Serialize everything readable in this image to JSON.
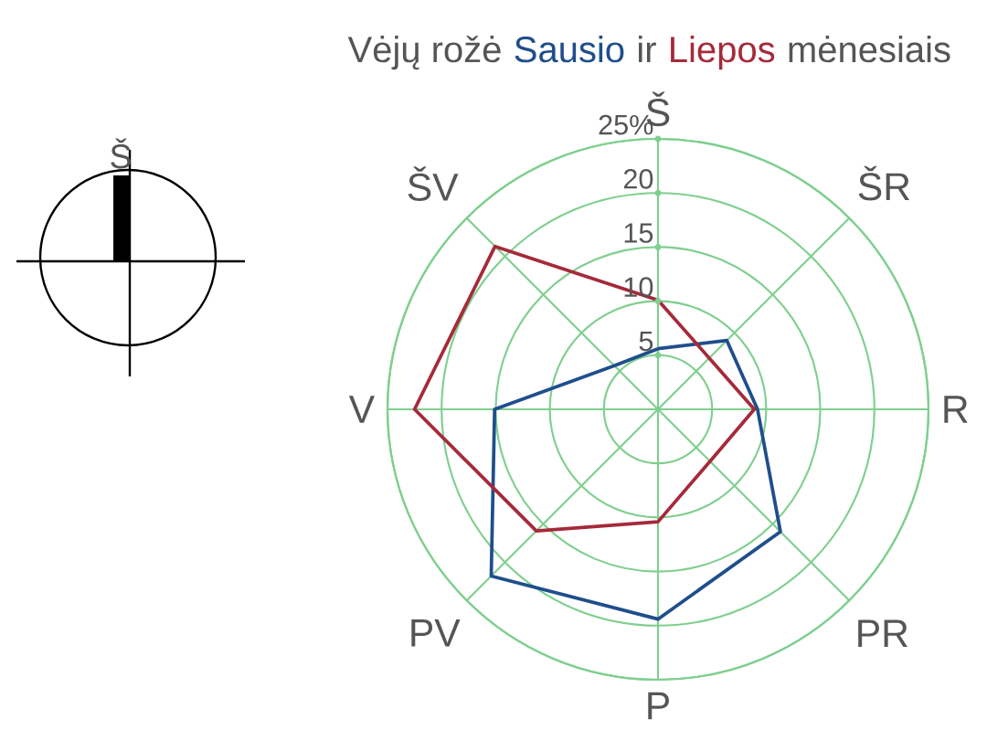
{
  "chart_data": {
    "type": "radar",
    "title": "Vėjų rožė",
    "categories": [
      "Š",
      "ŠR",
      "R",
      "PR",
      "P",
      "PV",
      "V",
      "ŠV"
    ],
    "series": [
      {
        "name": "Sausio",
        "color": "#1f4e8c",
        "values": [
          5.6,
          9,
          9.2,
          16,
          19.4,
          21.8,
          15.1,
          5.7
        ]
      },
      {
        "name": "Liepos",
        "color": "#a52a3a",
        "values": [
          10.1,
          6.7,
          8.9,
          6.8,
          10.4,
          15.9,
          22.5,
          21.3
        ]
      }
    ],
    "annotations": [
      "ir",
      "mėnesiais",
      "Š"
    ],
    "ylim": [
      0,
      25
    ],
    "yticks": [
      5,
      10,
      15,
      20,
      {
        "value": 25,
        "label": "25%"
      }
    ],
    "grid": true
  }
}
